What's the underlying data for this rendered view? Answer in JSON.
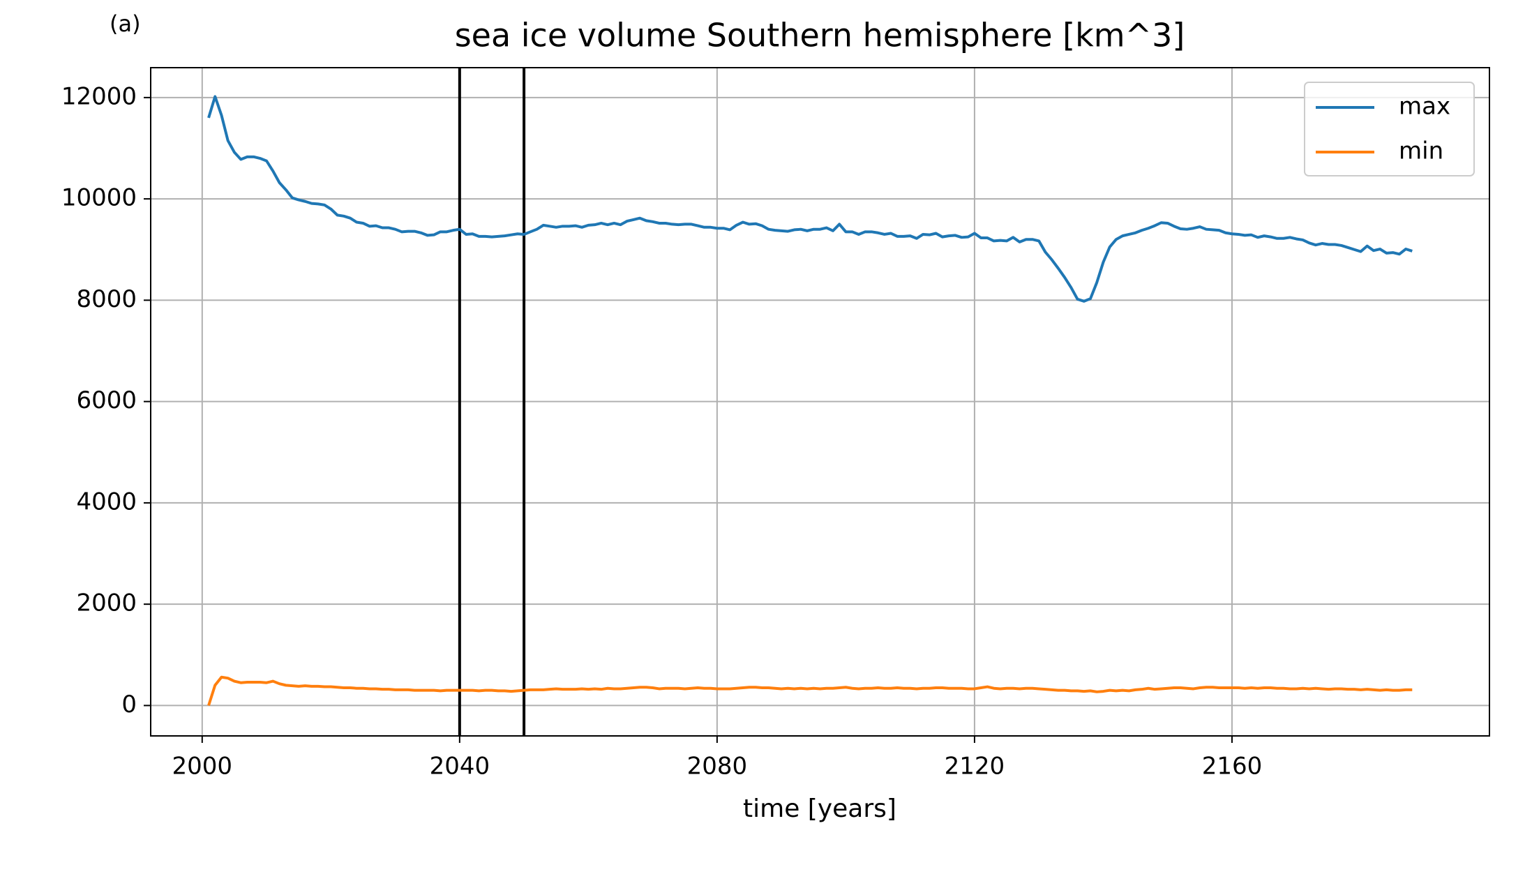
{
  "chart_data": {
    "type": "line",
    "panel_label": "(a)",
    "title": "sea ice volume Southern hemisphere [km^3]",
    "xlabel": "time [years]",
    "xlim": [
      1992,
      2200
    ],
    "ylim": [
      -600,
      12590
    ],
    "xticks": [
      2000,
      2040,
      2080,
      2120,
      2160
    ],
    "yticks": [
      0,
      2000,
      4000,
      6000,
      8000,
      10000,
      12000
    ],
    "grid": true,
    "legend": "upper right",
    "vlines": [
      2040,
      2050
    ],
    "vline_color": "#000000",
    "x": [
      2001,
      2002,
      2003,
      2004,
      2005,
      2006,
      2007,
      2008,
      2009,
      2010,
      2011,
      2012,
      2013,
      2014,
      2015,
      2016,
      2017,
      2018,
      2019,
      2020,
      2021,
      2022,
      2023,
      2024,
      2025,
      2026,
      2027,
      2028,
      2029,
      2030,
      2031,
      2032,
      2033,
      2034,
      2035,
      2036,
      2037,
      2038,
      2039,
      2040,
      2041,
      2042,
      2043,
      2044,
      2045,
      2046,
      2047,
      2048,
      2049,
      2050,
      2051,
      2052,
      2053,
      2054,
      2055,
      2056,
      2057,
      2058,
      2059,
      2060,
      2061,
      2062,
      2063,
      2064,
      2065,
      2066,
      2067,
      2068,
      2069,
      2070,
      2071,
      2072,
      2073,
      2074,
      2075,
      2076,
      2077,
      2078,
      2079,
      2080,
      2081,
      2082,
      2083,
      2084,
      2085,
      2086,
      2087,
      2088,
      2089,
      2090,
      2091,
      2092,
      2093,
      2094,
      2095,
      2096,
      2097,
      2098,
      2099,
      2100,
      2101,
      2102,
      2103,
      2104,
      2105,
      2106,
      2107,
      2108,
      2109,
      2110,
      2111,
      2112,
      2113,
      2114,
      2115,
      2116,
      2117,
      2118,
      2119,
      2120,
      2121,
      2122,
      2123,
      2124,
      2125,
      2126,
      2127,
      2128,
      2129,
      2130,
      2131,
      2132,
      2133,
      2134,
      2135,
      2136,
      2137,
      2138,
      2139,
      2140,
      2141,
      2142,
      2143,
      2144,
      2145,
      2146,
      2147,
      2148,
      2149,
      2150,
      2151,
      2152,
      2153,
      2154,
      2155,
      2156,
      2157,
      2158,
      2159,
      2160,
      2161,
      2162,
      2163,
      2164,
      2165,
      2166,
      2167,
      2168,
      2169,
      2170,
      2171,
      2172,
      2173,
      2174,
      2175,
      2176,
      2177,
      2178,
      2179,
      2180,
      2181,
      2182,
      2183,
      2184,
      2185,
      2186,
      2187,
      2188
    ],
    "series": [
      {
        "name": "max",
        "color": "#1f77b4",
        "values": [
          11600,
          12020,
          11650,
          11150,
          10920,
          10780,
          10830,
          10830,
          10800,
          10750,
          10550,
          10320,
          10180,
          10020,
          9980,
          9950,
          9910,
          9900,
          9880,
          9800,
          9680,
          9660,
          9620,
          9540,
          9520,
          9460,
          9470,
          9430,
          9430,
          9400,
          9350,
          9360,
          9360,
          9330,
          9280,
          9290,
          9350,
          9350,
          9380,
          9400,
          9300,
          9310,
          9260,
          9260,
          9250,
          9260,
          9270,
          9290,
          9310,
          9300,
          9350,
          9400,
          9480,
          9460,
          9440,
          9460,
          9460,
          9470,
          9440,
          9480,
          9490,
          9520,
          9490,
          9520,
          9490,
          9560,
          9590,
          9620,
          9570,
          9550,
          9520,
          9520,
          9500,
          9490,
          9500,
          9500,
          9470,
          9440,
          9440,
          9420,
          9420,
          9390,
          9480,
          9540,
          9500,
          9510,
          9470,
          9400,
          9380,
          9370,
          9360,
          9390,
          9400,
          9370,
          9400,
          9400,
          9430,
          9370,
          9500,
          9350,
          9350,
          9300,
          9350,
          9350,
          9330,
          9300,
          9320,
          9260,
          9260,
          9270,
          9220,
          9300,
          9290,
          9320,
          9250,
          9270,
          9280,
          9240,
          9250,
          9320,
          9230,
          9230,
          9170,
          9180,
          9170,
          9240,
          9150,
          9200,
          9200,
          9170,
          8950,
          8800,
          8630,
          8450,
          8250,
          8020,
          7980,
          8030,
          8350,
          8750,
          9050,
          9200,
          9270,
          9300,
          9330,
          9380,
          9420,
          9470,
          9530,
          9520,
          9460,
          9410,
          9400,
          9420,
          9450,
          9400,
          9390,
          9380,
          9330,
          9310,
          9300,
          9280,
          9290,
          9240,
          9270,
          9250,
          9220,
          9220,
          9240,
          9210,
          9190,
          9130,
          9090,
          9120,
          9100,
          9100,
          9080,
          9040,
          9000,
          8960,
          9070,
          8980,
          9010,
          8930,
          8940,
          8910,
          9010,
          8970
        ]
      },
      {
        "name": "min",
        "color": "#ff7f0e",
        "values": [
          0,
          400,
          560,
          540,
          480,
          450,
          460,
          460,
          460,
          450,
          480,
          430,
          400,
          390,
          380,
          390,
          380,
          380,
          370,
          370,
          360,
          350,
          350,
          340,
          340,
          330,
          330,
          320,
          320,
          310,
          310,
          310,
          300,
          300,
          300,
          300,
          290,
          300,
          300,
          300,
          300,
          300,
          290,
          300,
          300,
          290,
          290,
          280,
          290,
          300,
          310,
          310,
          310,
          320,
          330,
          320,
          320,
          320,
          330,
          320,
          330,
          320,
          340,
          330,
          330,
          340,
          350,
          360,
          360,
          350,
          330,
          340,
          340,
          340,
          330,
          340,
          350,
          340,
          340,
          330,
          330,
          330,
          340,
          350,
          360,
          360,
          350,
          350,
          340,
          330,
          340,
          330,
          340,
          330,
          340,
          330,
          340,
          340,
          350,
          360,
          340,
          330,
          340,
          340,
          350,
          340,
          340,
          350,
          340,
          340,
          330,
          340,
          340,
          350,
          350,
          340,
          340,
          340,
          330,
          330,
          350,
          370,
          340,
          330,
          340,
          340,
          330,
          340,
          340,
          330,
          320,
          310,
          300,
          300,
          290,
          290,
          280,
          290,
          270,
          280,
          300,
          290,
          300,
          290,
          310,
          320,
          340,
          320,
          330,
          340,
          350,
          350,
          340,
          330,
          350,
          360,
          360,
          350,
          350,
          350,
          350,
          340,
          350,
          340,
          350,
          350,
          340,
          340,
          330,
          330,
          340,
          330,
          340,
          330,
          320,
          330,
          330,
          320,
          320,
          310,
          320,
          310,
          300,
          310,
          300,
          300,
          310,
          310
        ]
      }
    ]
  }
}
